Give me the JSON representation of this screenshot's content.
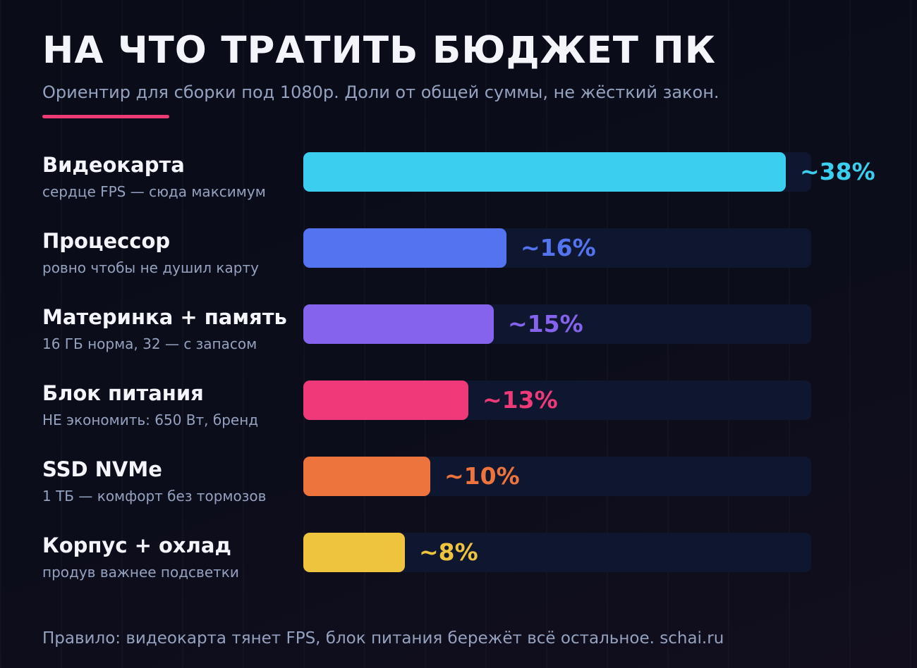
{
  "title": "НА ЧТО ТРАТИТЬ БЮДЖЕТ ПК",
  "subtitle": "Ориентир для сборки под 1080p. Доли от общей суммы, не жёсткий закон.",
  "footer": "Правило: видеокарта тянет FPS, блок питания бережёт всё остальное. schai.ru",
  "chart_data": {
    "type": "bar",
    "orientation": "horizontal",
    "title": "НА ЧТО ТРАТИТЬ БЮДЖЕТ ПК",
    "xlim": [
      0,
      40
    ],
    "categories": [
      {
        "label": "Видеокарта",
        "note": "сердце FPS — сюда максимум",
        "value": 38,
        "value_label": "~38%",
        "color": "#3bcfef"
      },
      {
        "label": "Процессор",
        "note": "ровно чтобы не душил карту",
        "value": 16,
        "value_label": "~16%",
        "color": "#5373ef"
      },
      {
        "label": "Материнка + память",
        "note": "16 ГБ норма, 32 — с запасом",
        "value": 15,
        "value_label": "~15%",
        "color": "#8563ed"
      },
      {
        "label": "Блок питания",
        "note": "НЕ экономить: 650 Вт, бренд",
        "value": 13,
        "value_label": "~13%",
        "color": "#ee3a78"
      },
      {
        "label": "SSD NVMe",
        "note": "1 ТБ — комфорт без тормозов",
        "value": 10,
        "value_label": "~10%",
        "color": "#ee743e"
      },
      {
        "label": "Корпус + охлад",
        "note": "продув важнее подсветки",
        "value": 8,
        "value_label": "~8%",
        "color": "#eec33e"
      }
    ]
  }
}
